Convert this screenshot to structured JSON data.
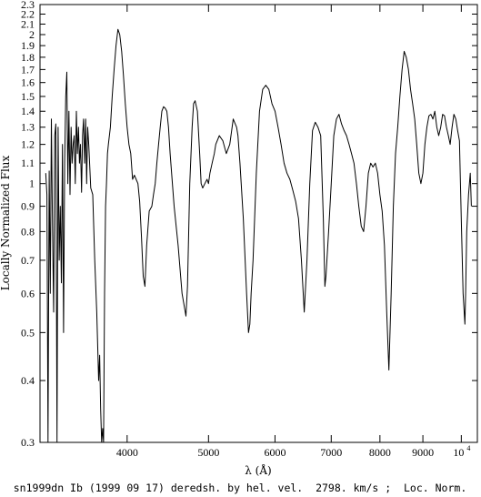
{
  "chart_data": {
    "type": "line",
    "title": "",
    "caption": "sn1999dn Ib (1999 09 17) deredsh. by hel. vel.  2798. km/s ;  Loc. Norm.",
    "xlabel": "λ (Å)",
    "ylabel": "Locally Normalized Flux",
    "x_scale": "log",
    "y_scale": "log",
    "xlim": [
      3150,
      10450
    ],
    "ylim": [
      0.3,
      2.3
    ],
    "grid": false,
    "x_ticks": [
      {
        "value": 4000,
        "label": "4000"
      },
      {
        "value": 5000,
        "label": "5000"
      },
      {
        "value": 6000,
        "label": "6000"
      },
      {
        "value": 7000,
        "label": "7000"
      },
      {
        "value": 8000,
        "label": "8000"
      },
      {
        "value": 9000,
        "label": "9000"
      }
    ],
    "x_power_tick": {
      "value": 10000,
      "base": "10",
      "exponent": "4"
    },
    "y_ticks": [
      "0.3",
      "0.4",
      "0.5",
      "0.6",
      "0.7",
      "0.8",
      "0.9",
      "1",
      "1.1",
      "1.2",
      "1.3",
      "1.4",
      "1.5",
      "1.6",
      "1.7",
      "1.8",
      "1.9",
      "2",
      "2.1",
      "2.2",
      "2.3"
    ],
    "series": [
      {
        "name": "",
        "color": "#000000",
        "x": [
          3200,
          3210,
          3220,
          3230,
          3240,
          3250,
          3260,
          3270,
          3280,
          3290,
          3300,
          3310,
          3320,
          3330,
          3340,
          3350,
          3360,
          3370,
          3380,
          3390,
          3400,
          3410,
          3420,
          3430,
          3440,
          3450,
          3460,
          3470,
          3480,
          3490,
          3500,
          3510,
          3520,
          3530,
          3540,
          3550,
          3560,
          3570,
          3580,
          3590,
          3600,
          3620,
          3640,
          3660,
          3680,
          3700,
          3710,
          3720,
          3730,
          3740,
          3750,
          3760,
          3770,
          3780,
          3790,
          3800,
          3820,
          3840,
          3860,
          3880,
          3900,
          3920,
          3940,
          3960,
          3980,
          4000,
          4020,
          4040,
          4060,
          4080,
          4100,
          4120,
          4140,
          4160,
          4180,
          4200,
          4220,
          4250,
          4280,
          4300,
          4320,
          4340,
          4360,
          4380,
          4400,
          4420,
          4440,
          4460,
          4480,
          4500,
          4550,
          4600,
          4650,
          4700,
          4720,
          4750,
          4780,
          4800,
          4820,
          4850,
          4880,
          4900,
          4920,
          4950,
          4980,
          5000,
          5020,
          5050,
          5080,
          5100,
          5150,
          5200,
          5250,
          5300,
          5350,
          5400,
          5420,
          5450,
          5500,
          5550,
          5580,
          5600,
          5620,
          5650,
          5700,
          5750,
          5800,
          5850,
          5900,
          5950,
          6000,
          6050,
          6100,
          6150,
          6200,
          6250,
          6300,
          6350,
          6400,
          6450,
          6500,
          6550,
          6600,
          6650,
          6700,
          6750,
          6800,
          6850,
          6880,
          6900,
          6950,
          7000,
          7050,
          7100,
          7150,
          7200,
          7250,
          7300,
          7350,
          7400,
          7450,
          7500,
          7550,
          7600,
          7650,
          7700,
          7750,
          7800,
          7850,
          7900,
          7950,
          8000,
          8050,
          8100,
          8150,
          8200,
          8250,
          8300,
          8350,
          8400,
          8450,
          8500,
          8550,
          8600,
          8650,
          8700,
          8750,
          8800,
          8850,
          8900,
          8950,
          9000,
          9050,
          9100,
          9150,
          9200,
          9250,
          9300,
          9350,
          9400,
          9450,
          9500,
          9550,
          9600,
          9650,
          9700,
          9750,
          9800,
          9850,
          9900,
          9950,
          10000,
          10050,
          10100,
          10120,
          10150,
          10200,
          10250,
          10280
        ],
        "y": [
          1.05,
          0.95,
          0.3,
          1.06,
          0.6,
          1.35,
          0.8,
          0.55,
          1.25,
          1.32,
          0.3,
          1.3,
          0.7,
          0.9,
          0.63,
          1.2,
          0.5,
          1.1,
          1.5,
          1.68,
          1.0,
          1.4,
          0.95,
          1.3,
          1.1,
          1.2,
          1.25,
          1.0,
          1.4,
          1.15,
          1.3,
          1.1,
          1.2,
          0.96,
          1.25,
          1.35,
          1.1,
          1.35,
          1.0,
          1.3,
          1.2,
          0.98,
          0.95,
          0.7,
          0.55,
          0.4,
          0.45,
          0.35,
          0.3,
          0.32,
          0.3,
          0.6,
          0.9,
          1.0,
          1.15,
          1.2,
          1.3,
          1.5,
          1.7,
          1.9,
          2.05,
          2.0,
          1.85,
          1.65,
          1.45,
          1.3,
          1.2,
          1.15,
          1.02,
          1.04,
          1.02,
          1.0,
          0.92,
          0.78,
          0.65,
          0.62,
          0.75,
          0.88,
          0.9,
          0.95,
          1.0,
          1.1,
          1.2,
          1.3,
          1.4,
          1.43,
          1.42,
          1.4,
          1.3,
          1.15,
          0.9,
          0.75,
          0.6,
          0.54,
          0.62,
          1.0,
          1.3,
          1.45,
          1.47,
          1.4,
          1.15,
          1.0,
          0.98,
          1.0,
          1.02,
          1.0,
          1.05,
          1.1,
          1.15,
          1.2,
          1.25,
          1.22,
          1.15,
          1.2,
          1.35,
          1.3,
          1.25,
          1.1,
          0.85,
          0.6,
          0.5,
          0.52,
          0.6,
          0.7,
          1.05,
          1.4,
          1.55,
          1.58,
          1.55,
          1.45,
          1.4,
          1.3,
          1.2,
          1.1,
          1.05,
          1.02,
          0.97,
          0.92,
          0.85,
          0.7,
          0.55,
          0.7,
          1.0,
          1.28,
          1.33,
          1.3,
          1.25,
          0.85,
          0.62,
          0.65,
          0.8,
          1.0,
          1.25,
          1.35,
          1.38,
          1.32,
          1.28,
          1.25,
          1.2,
          1.15,
          1.1,
          1.0,
          0.9,
          0.82,
          0.8,
          0.9,
          1.05,
          1.1,
          1.08,
          1.1,
          1.05,
          0.95,
          0.88,
          0.75,
          0.55,
          0.42,
          0.6,
          0.9,
          1.15,
          1.3,
          1.5,
          1.7,
          1.85,
          1.8,
          1.7,
          1.55,
          1.45,
          1.35,
          1.2,
          1.05,
          1.0,
          1.05,
          1.2,
          1.3,
          1.37,
          1.38,
          1.35,
          1.4,
          1.3,
          1.25,
          1.3,
          1.38,
          1.37,
          1.3,
          1.25,
          1.2,
          1.3,
          1.38,
          1.35,
          1.28,
          1.22,
          0.85,
          0.6,
          0.52,
          0.6,
          0.8,
          0.95,
          1.05,
          0.9
        ]
      }
    ]
  }
}
